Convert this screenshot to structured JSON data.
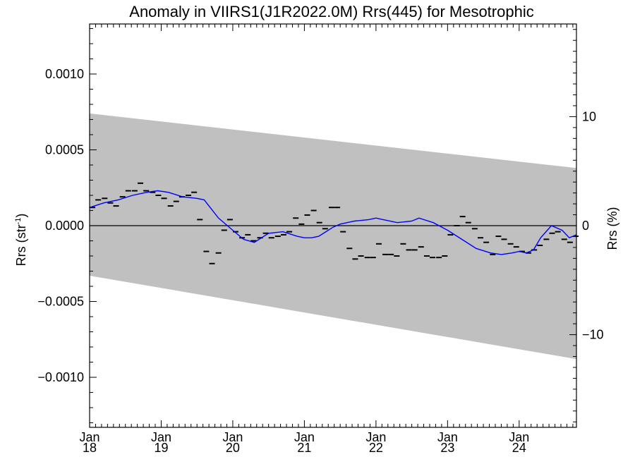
{
  "colors": {
    "band": "#c0c0c0",
    "smooth_line": "#0000ff",
    "points": "#000000",
    "zero_line": "#000000",
    "background": "#ffffff"
  },
  "chart_data": {
    "type": "scatter",
    "title": "Anomaly in VIIRS1(J1R2022.0M) Rrs(445) for Mesotrophic",
    "ylabel_left": "Rrs (str",
    "ylabel_left_sup": "-1",
    "ylabel_left_close": ")",
    "ylabel_right": "Rrs (%)",
    "xlim": [
      2018.0,
      2024.8
    ],
    "ylim": [
      -0.00133,
      0.00133
    ],
    "y2lim": [
      -18.5,
      18.5
    ],
    "grid": false,
    "legend": "none",
    "x_ticks": [
      {
        "value": 2018.0,
        "month": "Jan",
        "year": "18"
      },
      {
        "value": 2019.0,
        "month": "Jan",
        "year": "19"
      },
      {
        "value": 2020.0,
        "month": "Jan",
        "year": "20"
      },
      {
        "value": 2021.0,
        "month": "Jan",
        "year": "21"
      },
      {
        "value": 2022.0,
        "month": "Jan",
        "year": "22"
      },
      {
        "value": 2023.0,
        "month": "Jan",
        "year": "23"
      },
      {
        "value": 2024.0,
        "month": "Jan",
        "year": "24"
      }
    ],
    "y_ticks": [
      {
        "value": 0.001,
        "label": "0.0010"
      },
      {
        "value": 0.0005,
        "label": "0.0005"
      },
      {
        "value": 0.0,
        "label": "0.0000"
      },
      {
        "value": -0.0005,
        "label": "−0.0005"
      },
      {
        "value": -0.001,
        "label": "−0.0010"
      }
    ],
    "y2_ticks": [
      {
        "value": 10,
        "label": "10"
      },
      {
        "value": 0,
        "label": "0"
      },
      {
        "value": -10,
        "label": "−10"
      }
    ],
    "band": {
      "x": [
        2018.0,
        2024.8
      ],
      "upper": [
        0.00074,
        0.00038
      ],
      "lower": [
        -0.00033,
        -0.00088
      ]
    },
    "points": {
      "x": [
        2018.04,
        2018.12,
        2018.21,
        2018.29,
        2018.37,
        2018.46,
        2018.54,
        2018.63,
        2018.71,
        2018.79,
        2018.88,
        2018.96,
        2019.04,
        2019.13,
        2019.21,
        2019.29,
        2019.38,
        2019.46,
        2019.54,
        2019.63,
        2019.71,
        2019.8,
        2019.88,
        2019.96,
        2020.04,
        2020.13,
        2020.21,
        2020.29,
        2020.38,
        2020.46,
        2020.54,
        2020.63,
        2020.71,
        2020.79,
        2020.88,
        2020.96,
        2021.04,
        2021.13,
        2021.21,
        2021.29,
        2021.38,
        2021.46,
        2021.54,
        2021.63,
        2021.71,
        2021.79,
        2021.88,
        2021.96,
        2022.04,
        2022.13,
        2022.21,
        2022.29,
        2022.38,
        2022.46,
        2022.54,
        2022.63,
        2022.71,
        2022.79,
        2022.88,
        2022.96,
        2023.04,
        2023.13,
        2023.21,
        2023.29,
        2023.38,
        2023.46,
        2023.54,
        2023.63,
        2023.71,
        2023.79,
        2023.88,
        2023.96,
        2024.04,
        2024.13,
        2024.21,
        2024.29,
        2024.38,
        2024.46,
        2024.54,
        2024.63,
        2024.71,
        2024.79
      ],
      "y": [
        0.00012,
        0.00017,
        0.00018,
        0.00015,
        0.00013,
        0.00019,
        0.00023,
        0.00023,
        0.00028,
        0.00023,
        0.00022,
        0.0002,
        0.00018,
        0.00013,
        0.00016,
        0.00019,
        0.0002,
        0.00022,
        4e-05,
        -0.00017,
        -0.00025,
        -0.00018,
        -3e-05,
        4e-05,
        -4e-05,
        -8e-05,
        -6e-05,
        -0.0001,
        -8e-05,
        -5e-05,
        -8e-05,
        -7e-05,
        -6e-05,
        -4e-05,
        5e-05,
        1e-05,
        7e-05,
        0.0001,
        2e-05,
        -2e-05,
        0.00012,
        0.00012,
        -4e-05,
        -0.00015,
        -0.00022,
        -0.0002,
        -0.00021,
        -0.00021,
        -0.00012,
        -0.00019,
        -0.00019,
        -0.0002,
        -0.00012,
        -0.00016,
        -0.00016,
        -0.00014,
        -0.0002,
        -0.00021,
        -0.00021,
        -0.0002,
        -6e-05,
        0.0,
        6e-05,
        2e-05,
        -2e-05,
        -8e-05,
        -0.00011,
        -0.00019,
        -7e-05,
        -9e-05,
        -0.00012,
        -0.00014,
        -0.00017,
        -0.00018,
        -0.00016,
        -0.00013,
        -9e-05,
        -5e-05,
        -4e-05,
        -9e-05,
        -0.00011,
        -7e-05
      ]
    },
    "smooth": {
      "x": [
        2018.0,
        2018.2,
        2018.4,
        2018.6,
        2018.8,
        2018.95,
        2019.1,
        2019.3,
        2019.5,
        2019.6,
        2019.8,
        2020.0,
        2020.15,
        2020.3,
        2020.5,
        2020.7,
        2020.9,
        2021.0,
        2021.1,
        2021.2,
        2021.3,
        2021.4,
        2021.5,
        2021.7,
        2021.9,
        2022.0,
        2022.1,
        2022.3,
        2022.5,
        2022.6,
        2022.8,
        2023.0,
        2023.2,
        2023.4,
        2023.6,
        2023.75,
        2023.9,
        2024.0,
        2024.1,
        2024.2,
        2024.3,
        2024.45,
        2024.6,
        2024.7,
        2024.8
      ],
      "y": [
        0.00012,
        0.00015,
        0.00017,
        0.0002,
        0.00022,
        0.00023,
        0.00022,
        0.00019,
        0.00018,
        0.00017,
        5e-05,
        -3e-05,
        -9e-05,
        -0.00011,
        -5e-05,
        -4e-05,
        -7e-05,
        -8e-05,
        -8e-05,
        -7e-05,
        -4e-05,
        -1e-05,
        1e-05,
        3e-05,
        4e-05,
        5e-05,
        4e-05,
        2e-05,
        3e-05,
        5e-05,
        2e-05,
        -3e-05,
        -9e-05,
        -0.00015,
        -0.00018,
        -0.00019,
        -0.00018,
        -0.00017,
        -0.00018,
        -0.00016,
        -8e-05,
        0.0,
        -3e-05,
        -8e-05,
        -6e-05
      ]
    }
  }
}
